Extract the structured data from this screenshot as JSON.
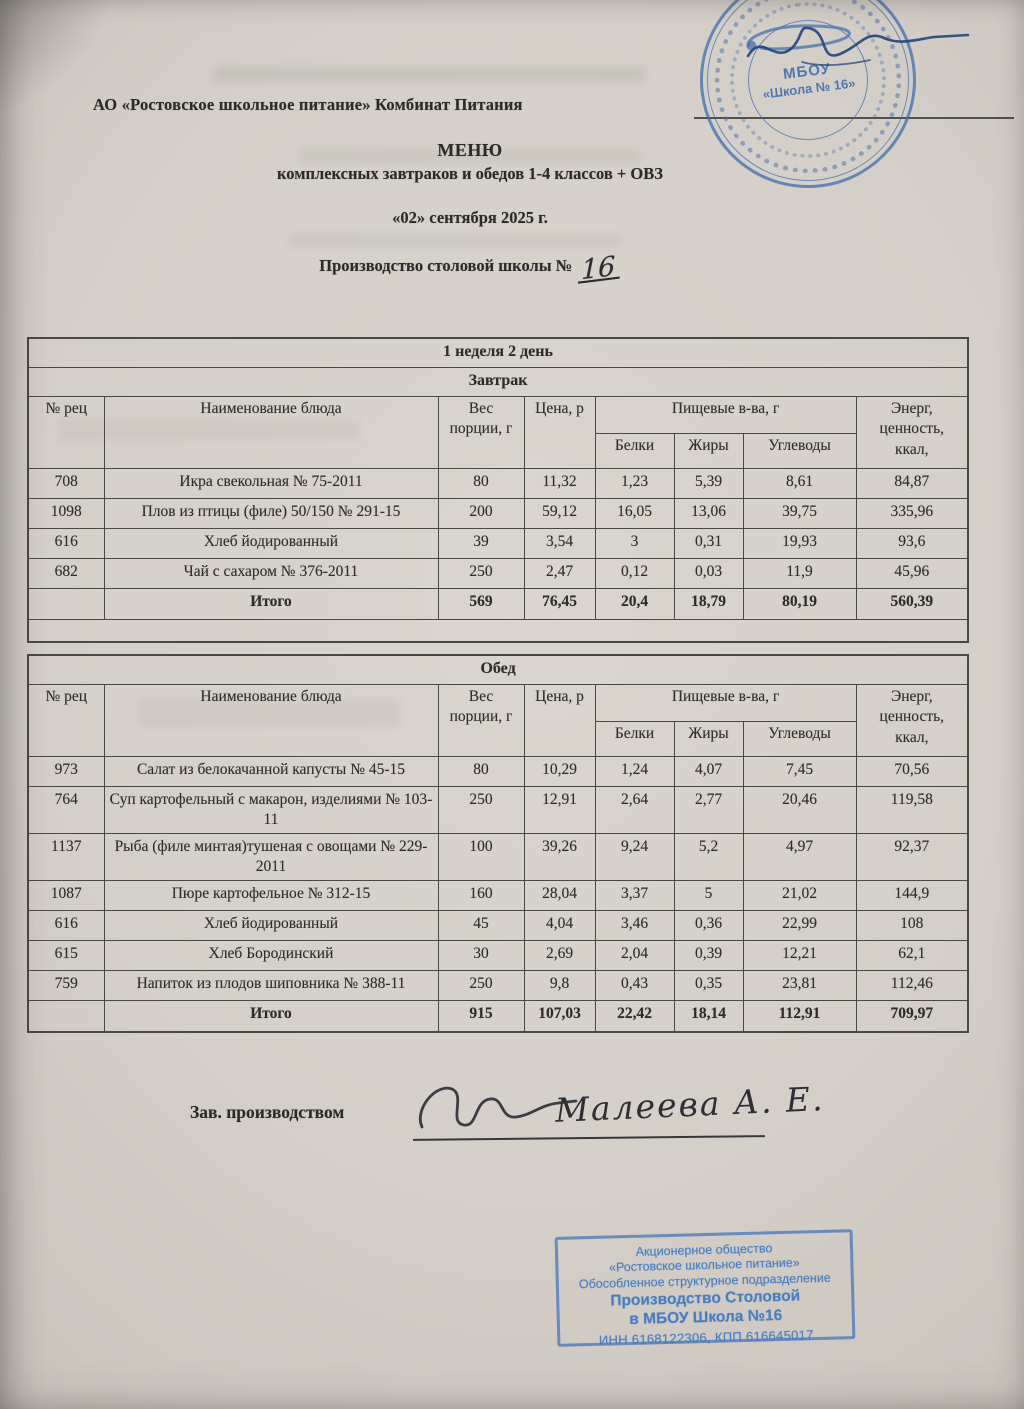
{
  "document": {
    "org_line": "АО «Ростовское школьное питание» Комбинат Питания",
    "title": "МЕНЮ",
    "subtitle": "комплексных завтраков и обедов 1-4 классов + ОВЗ",
    "date_line": "«02» сентября 2025 г.",
    "production_line": "Производство столовой школы №",
    "school_number_handwritten": "16"
  },
  "round_stamp": {
    "line1": "МБОУ",
    "line2": "«Школа № 16»"
  },
  "menu": {
    "week_header": "1 неделя 2 день",
    "col_headers": {
      "num": "№ рец",
      "name": "Наименование блюда",
      "weight": "Вес порции, г",
      "price": "Цена, р",
      "nutrients": "Пищевые в-ва, г",
      "protein": "Белки",
      "fat": "Жиры",
      "carbs": "Углеводы",
      "energy": "Энерг, ценность, ккал,"
    },
    "sections": [
      {
        "title": "Завтрак",
        "rows": [
          {
            "num": "708",
            "name": "Икра свекольная № 75-2011",
            "weight": "80",
            "price": "11,32",
            "protein": "1,23",
            "fat": "5,39",
            "carbs": "8,61",
            "energy": "84,87"
          },
          {
            "num": "1098",
            "name": "Плов из птицы (филе) 50/150 № 291-15",
            "weight": "200",
            "price": "59,12",
            "protein": "16,05",
            "fat": "13,06",
            "carbs": "39,75",
            "energy": "335,96"
          },
          {
            "num": "616",
            "name": "Хлеб йодированный",
            "weight": "39",
            "price": "3,54",
            "protein": "3",
            "fat": "0,31",
            "carbs": "19,93",
            "energy": "93,6"
          },
          {
            "num": "682",
            "name": "Чай с сахаром № 376-2011",
            "weight": "250",
            "price": "2,47",
            "protein": "0,12",
            "fat": "0,03",
            "carbs": "11,9",
            "energy": "45,96"
          }
        ],
        "total": {
          "label": "Итого",
          "weight": "569",
          "price": "76,45",
          "protein": "20,4",
          "fat": "18,79",
          "carbs": "80,19",
          "energy": "560,39"
        }
      },
      {
        "title": "Обед",
        "rows": [
          {
            "num": "973",
            "name": "Салат из белокачанной капусты № 45-15",
            "weight": "80",
            "price": "10,29",
            "protein": "1,24",
            "fat": "4,07",
            "carbs": "7,45",
            "energy": "70,56"
          },
          {
            "num": "764",
            "name": "Суп картофельный с макарон, изделиями № 103-11",
            "weight": "250",
            "price": "12,91",
            "protein": "2,64",
            "fat": "2,77",
            "carbs": "20,46",
            "energy": "119,58"
          },
          {
            "num": "1137",
            "name": "Рыба (филе минтая)тушеная с овощами № 229-2011",
            "weight": "100",
            "price": "39,26",
            "protein": "9,24",
            "fat": "5,2",
            "carbs": "4,97",
            "energy": "92,37"
          },
          {
            "num": "1087",
            "name": "Пюре картофельное № 312-15",
            "weight": "160",
            "price": "28,04",
            "protein": "3,37",
            "fat": "5",
            "carbs": "21,02",
            "energy": "144,9"
          },
          {
            "num": "616",
            "name": "Хлеб йодированный",
            "weight": "45",
            "price": "4,04",
            "protein": "3,46",
            "fat": "0,36",
            "carbs": "22,99",
            "energy": "108"
          },
          {
            "num": "615",
            "name": "Хлеб Бородинский",
            "weight": "30",
            "price": "2,69",
            "protein": "2,04",
            "fat": "0,39",
            "carbs": "12,21",
            "energy": "62,1"
          },
          {
            "num": "759",
            "name": "Напиток из плодов шиповника № 388-11",
            "weight": "250",
            "price": "9,8",
            "protein": "0,43",
            "fat": "0,35",
            "carbs": "23,81",
            "energy": "112,46"
          }
        ],
        "total": {
          "label": "Итого",
          "weight": "915",
          "price": "107,03",
          "protein": "22,42",
          "fat": "18,14",
          "carbs": "112,91",
          "energy": "709,97"
        }
      }
    ]
  },
  "signature": {
    "label": "Зав. производством",
    "name": "Малеева А. Е."
  },
  "rect_stamp": {
    "lines": [
      "Акционерное общество",
      "«Ростовское школьное питание»",
      "Обособленное структурное подразделение",
      "Производство Столовой",
      "в МБОУ Школа №16",
      "ИНН 6168122306,  КПП 616645017"
    ]
  },
  "colors": {
    "stamp_blue": "#3f6cae",
    "rect_stamp_blue": "#4a7dc0",
    "ink": "#2c2b29",
    "paper": "#d4cfc8"
  }
}
